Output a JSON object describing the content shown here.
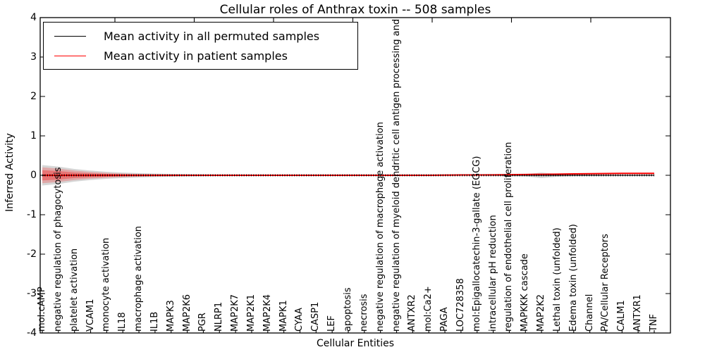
{
  "figure": {
    "title": "Cellular roles of Anthrax toxin -- 508 samples",
    "xlabel": "Cellular Entities",
    "ylabel": "Inferred Activity",
    "legend": [
      {
        "label": "Mean activity in all permuted samples",
        "color": "#000000"
      },
      {
        "label": "Mean activity in patient samples",
        "color": "#ff0000"
      }
    ]
  },
  "chart_data": {
    "type": "line",
    "title": "Cellular roles of Anthrax toxin -- 508 samples",
    "xlabel": "Cellular Entities",
    "ylabel": "Inferred Activity",
    "ylim": [
      -4,
      4
    ],
    "yticks": [
      "4",
      "3",
      "2",
      "1",
      "0",
      "-1",
      "-2",
      "-3",
      "-4"
    ],
    "grid": false,
    "legend_position": "upper left",
    "categories": [
      "mol:cAMP",
      "negative regulation of phagocytosis",
      "platelet activation",
      "VCAM1",
      "monocyte activation",
      "IL18",
      "macrophage activation",
      "IL1B",
      "MAPK3",
      "MAP2K6",
      "PGR",
      "NLRP1",
      "MAP2K7",
      "MAP2K1",
      "MAP2K4",
      "MAPK1",
      "CYAA",
      "CASP1",
      "LEF",
      "apoptosis",
      "necrosis",
      "negative regulation of macrophage activation",
      "negative regulation of myeloid dendritic cell antigen processing and",
      "ANTXR2",
      "mol:Ca2+",
      "PAGA",
      "LOC728358",
      "mol:Epigallocatechin-3-gallate (EGCG)",
      "intracellular pH reduction",
      "regulation of endothelial cell proliferation",
      "MAPKKK cascade",
      "MAP2K2",
      "Lethal toxin (unfolded)",
      "Edema toxin (unfolded)",
      "Channel",
      "PA/Cellular Receptors",
      "CALM1",
      "ANTXR1",
      "TNF"
    ],
    "series": [
      {
        "name": "Mean activity in all permuted samples",
        "color": "#000000",
        "values": [
          0,
          0,
          0,
          0,
          0,
          0,
          0,
          0,
          0,
          0,
          0,
          0,
          0,
          0,
          0,
          0,
          0,
          0,
          0,
          0,
          0,
          0,
          0,
          0,
          0,
          0,
          0,
          0,
          0,
          0,
          0,
          0,
          0,
          0,
          0,
          0,
          0,
          0,
          0
        ]
      },
      {
        "name": "Mean activity in patient samples",
        "color": "#ff0000",
        "values": [
          0,
          0,
          0,
          0,
          0,
          0,
          0,
          0,
          0,
          0,
          0,
          0,
          0,
          0,
          0,
          0,
          0,
          0,
          0,
          0,
          0,
          0,
          0,
          0,
          0,
          0.005,
          0.008,
          0.01,
          0.012,
          0.015,
          0.02,
          0.025,
          0.03,
          0.035,
          0.04,
          0.045,
          0.05,
          0.05,
          0.05
        ]
      }
    ],
    "bands": [
      {
        "name": "permuted-activity-spread",
        "color": "#999999",
        "opacity": 0.4,
        "mean_of": 0,
        "half_widths": [
          0.26,
          0.22,
          0.16,
          0.12,
          0.09,
          0.07,
          0.055,
          0.045,
          0.035,
          0.03,
          0.025,
          0.02,
          0.02,
          0.018,
          0.018,
          0.016,
          0.016,
          0.015,
          0.015,
          0.014,
          0.014,
          0.013,
          0.013,
          0.012,
          0.012,
          0.012,
          0.012,
          0.012,
          0.015,
          0.02,
          0.03,
          0.07,
          0.035,
          0.02,
          0.015,
          0.012,
          0.012,
          0.012,
          0.012
        ]
      },
      {
        "name": "patient-activity-spread-outer",
        "color": "#ff0000",
        "opacity": 0.22,
        "mean_of": 1,
        "half_widths": [
          0.2,
          0.17,
          0.12,
          0.085,
          0.06,
          0.045,
          0.035,
          0.028,
          0.022,
          0.018,
          0.015,
          0.013,
          0.013,
          0.012,
          0.012,
          0.011,
          0.011,
          0.011,
          0.011,
          0.011,
          0.011,
          0.011,
          0.011,
          0.011,
          0.011,
          0.011,
          0.011,
          0.011,
          0.012,
          0.013,
          0.015,
          0.018,
          0.015,
          0.013,
          0.012,
          0.011,
          0.011,
          0.011,
          0.011
        ]
      },
      {
        "name": "patient-activity-spread-inner",
        "color": "#ff0000",
        "opacity": 0.3,
        "mean_of": 1,
        "half_widths": [
          0.13,
          0.11,
          0.07,
          0.05,
          0.035,
          0.026,
          0.02,
          0.016,
          0.013,
          0.011,
          0.009,
          0.008,
          0.008,
          0.007,
          0.007,
          0.007,
          0.007,
          0.007,
          0.007,
          0.007,
          0.007,
          0.007,
          0.007,
          0.007,
          0.007,
          0.007,
          0.007,
          0.007,
          0.007,
          0.008,
          0.009,
          0.011,
          0.009,
          0.008,
          0.007,
          0.007,
          0.007,
          0.007,
          0.007
        ]
      }
    ]
  }
}
